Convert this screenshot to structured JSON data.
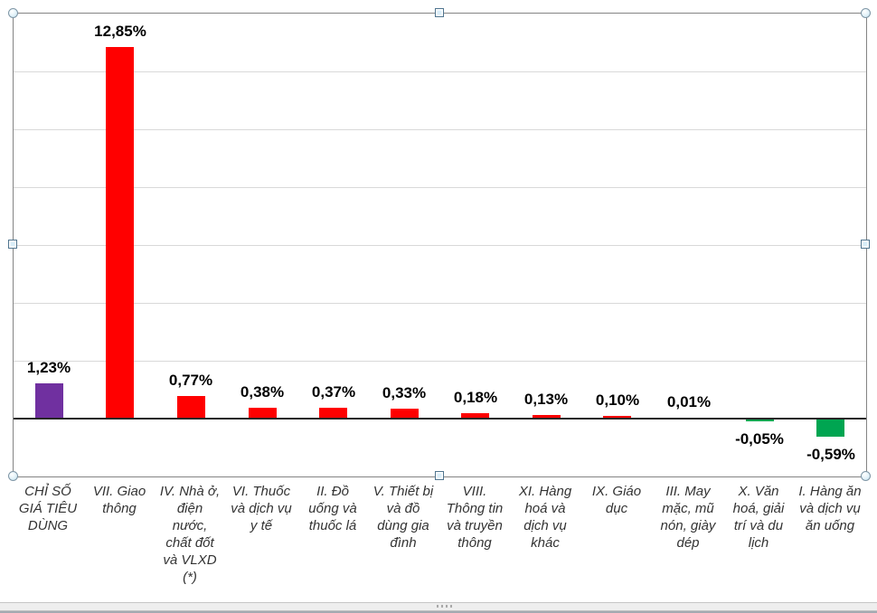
{
  "chart_data": {
    "type": "bar",
    "title": "",
    "xlabel": "",
    "ylabel": "",
    "legend": "none",
    "grid": true,
    "ylim": [
      -2,
      14
    ],
    "gridline_step_percent": 2,
    "categories": [
      "CHỈ SỐ\nGIÁ TIÊU\nDÙNG",
      "VII. Giao\nthông",
      "IV. Nhà ở,\nđiện\nnước,\nchất đốt\nvà VLXD\n(*)",
      "VI. Thuốc\nvà dịch vụ\ny tế",
      "II. Đồ\nuống và\nthuốc lá",
      "V. Thiết bị\nvà đồ\ndùng gia\nđình",
      "VIII.\nThông tin\nvà truyền\nthông",
      "XI. Hàng\nhoá và\ndịch vụ\nkhác",
      "IX. Giáo\ndục",
      "III. May\nmặc, mũ\nnón, giày\ndép",
      "X. Văn\nhoá, giải\ntrí và du\nlịch",
      "I. Hàng ăn\nvà dịch vụ\năn uống"
    ],
    "values": [
      1.23,
      12.85,
      0.77,
      0.38,
      0.37,
      0.33,
      0.18,
      0.13,
      0.1,
      0.01,
      -0.05,
      -0.59
    ],
    "value_labels": [
      "1,23%",
      "12,85%",
      "0,77%",
      "0,38%",
      "0,37%",
      "0,33%",
      "0,18%",
      "0,13%",
      "0,10%",
      "0,01%",
      "-0,05%",
      "-0,59%"
    ],
    "bar_colors": [
      "#7030A0",
      "#FF0000",
      "#FF0000",
      "#FF0000",
      "#FF0000",
      "#FF0000",
      "#FF0000",
      "#FF0000",
      "#FF0000",
      "#FF0000",
      "#00A551",
      "#00A551"
    ]
  },
  "colors": {
    "gridline": "#D9D9D9",
    "axis_line": "#262626",
    "plot_border": "#848484",
    "handle_fill": "#D9EEF8",
    "handle_border": "#50758F"
  },
  "selection": {
    "target": "plot-area",
    "handles": [
      "top-left",
      "top-middle",
      "top-right",
      "middle-left",
      "middle-right",
      "bottom-left",
      "bottom-middle",
      "bottom-right"
    ]
  }
}
